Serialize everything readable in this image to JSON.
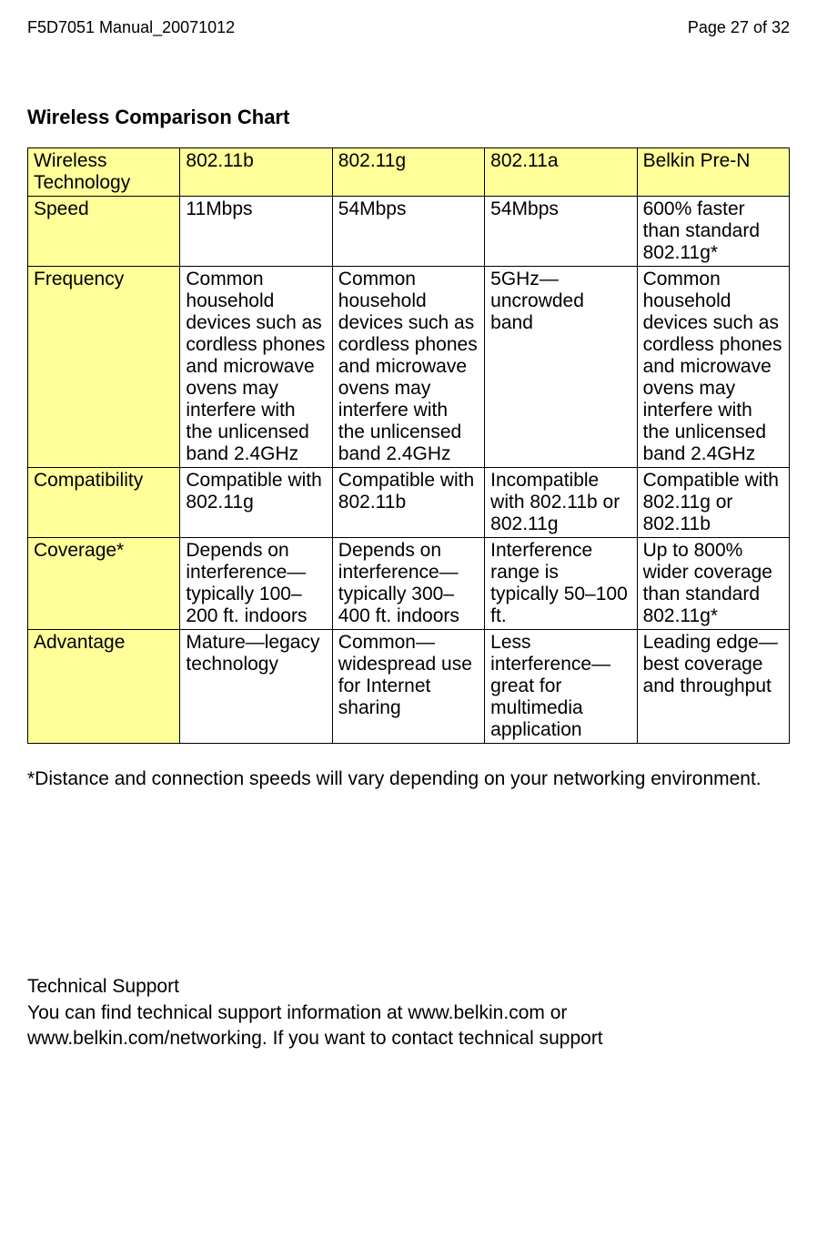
{
  "header": {
    "left": "F5D7051 Manual_20071012",
    "right": "Page 27 of 32"
  },
  "chartTitle": "Wireless Comparison Chart",
  "table": {
    "colors": {
      "headerBg": "#ffff99",
      "border": "#000000",
      "text": "#000000"
    },
    "headerRow": [
      "Wireless Technology",
      "802.11b",
      "802.11g",
      "802.11a",
      "Belkin Pre-N"
    ],
    "rows": [
      {
        "label": "Speed",
        "cells": [
          "11Mbps",
          "54Mbps",
          "54Mbps",
          "600% faster than standard 802.11g*"
        ]
      },
      {
        "label": "Frequency",
        "cells": [
          "Common household devices such as cordless phones and microwave ovens may interfere with the unlicensed band 2.4GHz",
          "Common household devices such as cordless phones and microwave ovens may interfere with the unlicensed band 2.4GHz",
          "5GHz—uncrowded band",
          "Common household devices such as cordless phones and microwave ovens may interfere with the unlicensed band 2.4GHz"
        ]
      },
      {
        "label": "Compatibility",
        "cells": [
          "Compatible with 802.11g",
          "Compatible with 802.11b",
          "Incompatible with 802.11b or 802.11g",
          "Compatible with 802.11g or 802.11b"
        ]
      },
      {
        "label": "Coverage*",
        "cells": [
          "Depends on interference—typically 100–200 ft. indoors",
          "Depends on interference—typically 300–400 ft. indoors",
          "Interference range is typically 50–100 ft.",
          "Up to 800% wider coverage than standard 802.11g*"
        ]
      },
      {
        "label": "Advantage",
        "cells": [
          "Mature—legacy technology",
          "Common—widespread use for Internet sharing",
          "Less interference—great for multimedia application",
          "Leading edge—best coverage and throughput"
        ]
      }
    ]
  },
  "footnote": "*Distance and connection speeds will vary depending on your networking environment.",
  "techSupport": {
    "title": "Technical Support",
    "body": "You can find technical support information at www.belkin.com or www.belkin.com/networking. If you want to contact technical support"
  }
}
